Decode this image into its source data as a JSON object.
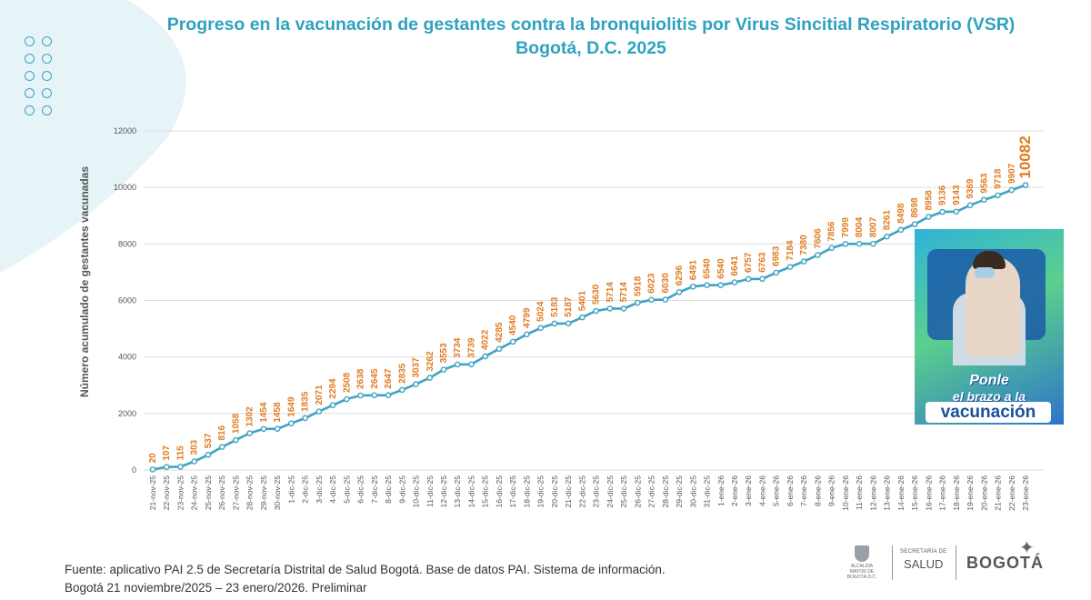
{
  "title": {
    "line1": "Progreso en la vacunación de gestantes contra la bronquiolitis por Virus Sincitial Respiratorio (VSR)",
    "line2": "Bogotá, D.C. 2025"
  },
  "colors": {
    "title": "#2fa2bf",
    "line": "#3ea3c2",
    "data_label": "#e07b1f",
    "grid": "#dddddd",
    "axis_text": "#555555"
  },
  "chart_data": {
    "type": "line",
    "title": "Progreso en la vacunación de gestantes contra la bronquiolitis por Virus Sincitial Respiratorio (VSR) Bogotá, D.C. 2025",
    "xlabel": "",
    "ylabel": "Número acumulado de gestantes vacunadas",
    "ylim": [
      0,
      12000
    ],
    "yticks": [
      "0",
      "2000",
      "4000",
      "6000",
      "8000",
      "10000",
      "12000"
    ],
    "grid": true,
    "categories": [
      "21-nov-25",
      "22-nov-25",
      "23-nov-25",
      "24-nov-25",
      "25-nov-25",
      "26-nov-25",
      "27-nov-25",
      "28-nov-25",
      "29-nov-25",
      "30-nov-25",
      "1-dic-25",
      "2-dic-25",
      "3-dic-25",
      "4-dic-25",
      "5-dic-25",
      "6-dic-25",
      "7-dic-25",
      "8-dic-25",
      "9-dic-25",
      "10-dic-25",
      "11-dic-25",
      "12-dic-25",
      "13-dic-25",
      "14-dic-25",
      "15-dic-25",
      "16-dic-25",
      "17-dic-25",
      "18-dic-25",
      "19-dic-25",
      "20-dic-25",
      "21-dic-25",
      "22-dic-25",
      "23-dic-25",
      "24-dic-25",
      "25-dic-25",
      "26-dic-25",
      "27-dic-25",
      "28-dic-25",
      "29-dic-25",
      "30-dic-25",
      "31-dic-25",
      "1-ene-26",
      "2-ene-26",
      "3-ene-26",
      "4-ene-26",
      "5-ene-26",
      "6-ene-26",
      "7-ene-26",
      "8-ene-26",
      "9-ene-26",
      "10-ene-26",
      "11-ene-26",
      "12-ene-26",
      "13-ene-26",
      "14-ene-26",
      "15-ene-26",
      "16-ene-26",
      "17-ene-26",
      "18-ene-26",
      "19-ene-26",
      "20-ene-26",
      "21-ene-26",
      "22-ene-26",
      "23-ene-26"
    ],
    "series": [
      {
        "name": "Número acumulado de gestantes vacunadas",
        "values": [
          20,
          107,
          115,
          303,
          537,
          816,
          1058,
          1302,
          1454,
          1458,
          1649,
          1835,
          2071,
          2294,
          2508,
          2638,
          2645,
          2647,
          2835,
          3037,
          3262,
          3553,
          3734,
          3739,
          4022,
          4285,
          4540,
          4799,
          5024,
          5183,
          5187,
          5401,
          5630,
          5714,
          5714,
          5918,
          6023,
          6030,
          6296,
          6491,
          6540,
          6540,
          6641,
          6757,
          6763,
          6983,
          7184,
          7380,
          7606,
          7856,
          7999,
          8004,
          8007,
          8261,
          8498,
          8698,
          8958,
          9136,
          9143,
          9369,
          9563,
          9718,
          9907,
          10082
        ]
      }
    ]
  },
  "promo": {
    "line1": "Ponle",
    "line2": "el brazo a la",
    "line3": "vacunación"
  },
  "source": {
    "line1": "Fuente: aplicativo PAI 2.5 de Secretaría Distrital de Salud Bogotá. Base de datos PAI. Sistema de información.",
    "line2": "Bogotá 21 noviembre/2025 – 23 enero/2026. Preliminar"
  },
  "logos": {
    "alcaldia": "ALCALDÍA MAYOR DE BOGOTÁ D.C.",
    "secretaria": "SECRETARÍA DE",
    "salud": "SALUD",
    "bogota": "BOGOTÁ",
    "star_icon": "star-icon",
    "shield_icon": "shield-icon"
  }
}
